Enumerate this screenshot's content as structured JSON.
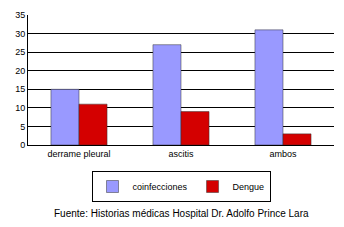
{
  "chart_data": {
    "type": "bar",
    "categories": [
      "derrame pleural",
      "ascitis",
      "ambos"
    ],
    "series": [
      {
        "name": "coinfecciones",
        "color": "#9999ff",
        "values": [
          15,
          27,
          31
        ]
      },
      {
        "name": "Dengue",
        "color": "#d40000",
        "values": [
          11,
          9,
          3
        ]
      }
    ],
    "ylim": [
      0,
      35
    ],
    "yticks": [
      0,
      5,
      10,
      15,
      20,
      25,
      30,
      35
    ],
    "grid": true,
    "legend": "bottom",
    "annotations": [
      "Fuente: Historias médicas Hospital Dr. Adolfo Prince Lara"
    ]
  }
}
